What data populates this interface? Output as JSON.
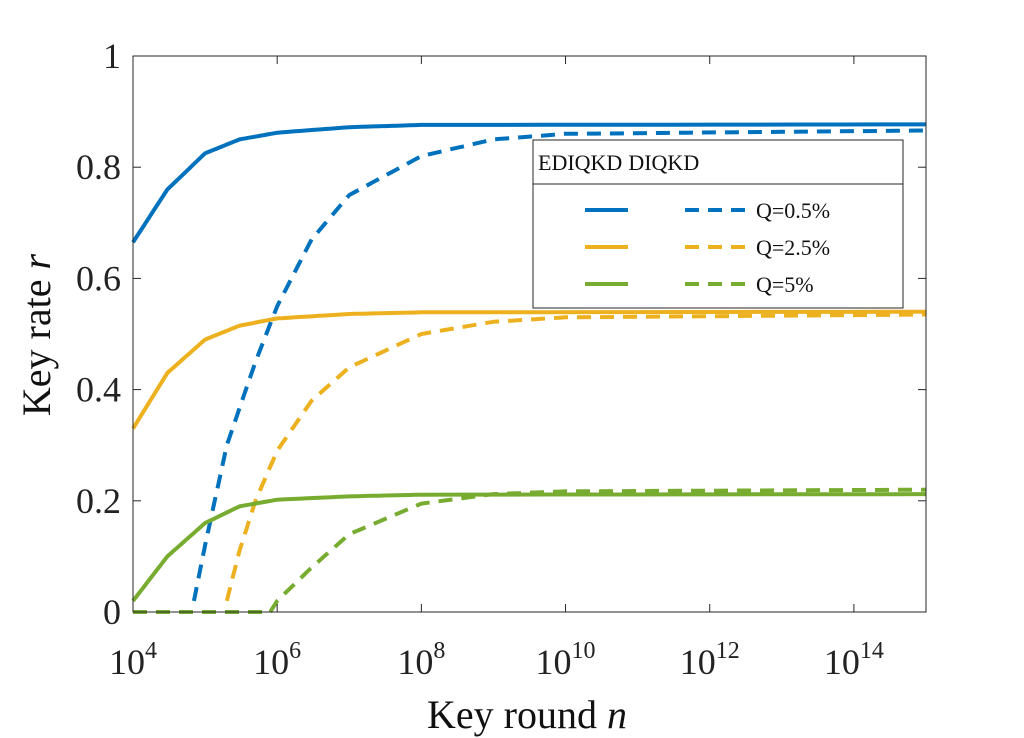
{
  "chart_data": {
    "type": "line",
    "xlabel": {
      "text": "Key round ",
      "var": "n"
    },
    "ylabel": {
      "text": "Key rate ",
      "var": "r"
    },
    "xscale": "log",
    "xlim": [
      10000,
      1000000000000000
    ],
    "ylim": [
      0,
      1
    ],
    "xticks": [
      {
        "base": "10",
        "exp": "4"
      },
      {
        "base": "10",
        "exp": "6"
      },
      {
        "base": "10",
        "exp": "8"
      },
      {
        "base": "10",
        "exp": "10"
      },
      {
        "base": "10",
        "exp": "12"
      },
      {
        "base": "10",
        "exp": "14"
      }
    ],
    "xtick_values": [
      10000,
      1000000,
      100000000,
      10000000000,
      1000000000000,
      100000000000000
    ],
    "yticks": [
      "0",
      "0.2",
      "0.4",
      "0.6",
      "0.8",
      "1"
    ],
    "ytick_values": [
      0,
      0.2,
      0.4,
      0.6,
      0.8,
      1
    ],
    "grid": false,
    "legend": {
      "placement": "top-right",
      "col1": "EDIQKD",
      "col2": "DIQKD",
      "entries": [
        "Q=0.5%",
        "Q=2.5%",
        "Q=5%"
      ]
    },
    "colors": {
      "blue": "#0072BD",
      "orange": "#EDB120",
      "green": "#77AC30"
    },
    "series": [
      {
        "legend_index": 0,
        "color": "blue",
        "style": "solid",
        "x": [
          10000,
          30000,
          100000,
          300000,
          1000000,
          10000000,
          100000000,
          1000000000000000
        ],
        "y": [
          0.665,
          0.76,
          0.825,
          0.85,
          0.862,
          0.872,
          0.876,
          0.877
        ]
      },
      {
        "legend_index": 0,
        "color": "blue",
        "style": "dashed",
        "x": [
          70000,
          100000,
          200000,
          500000,
          1000000,
          3000000,
          10000000,
          100000000,
          1000000000,
          10000000000,
          1000000000000000
        ],
        "y": [
          0.02,
          0.12,
          0.3,
          0.45,
          0.55,
          0.67,
          0.75,
          0.82,
          0.85,
          0.86,
          0.866
        ]
      },
      {
        "legend_index": 1,
        "color": "orange",
        "style": "solid",
        "x": [
          10000,
          30000,
          100000,
          300000,
          1000000,
          10000000,
          100000000,
          1000000000000000
        ],
        "y": [
          0.33,
          0.43,
          0.49,
          0.515,
          0.528,
          0.536,
          0.539,
          0.54
        ]
      },
      {
        "legend_index": 1,
        "color": "orange",
        "style": "dashed",
        "x": [
          200000,
          300000,
          500000,
          1000000,
          3000000,
          10000000,
          100000000,
          1000000000,
          10000000000,
          1000000000000000
        ],
        "y": [
          0.02,
          0.11,
          0.2,
          0.29,
          0.38,
          0.44,
          0.5,
          0.522,
          0.53,
          0.535
        ]
      },
      {
        "legend_index": 2,
        "color": "green",
        "style": "solid",
        "x": [
          10000,
          30000,
          100000,
          300000,
          1000000,
          10000000,
          100000000,
          1000000000000000
        ],
        "y": [
          0.02,
          0.1,
          0.16,
          0.19,
          0.202,
          0.208,
          0.211,
          0.212
        ]
      },
      {
        "legend_index": 2,
        "color": "green",
        "style": "dashed",
        "x": [
          800000,
          1000000,
          3000000,
          10000000,
          100000000,
          1000000000,
          10000000000,
          1000000000000000
        ],
        "y": [
          0.0,
          0.02,
          0.08,
          0.14,
          0.195,
          0.212,
          0.217,
          0.22
        ]
      },
      {
        "legend_index": -1,
        "color": "blue",
        "style": "dashed",
        "x": [
          10000,
          70000
        ],
        "y": [
          0.0,
          0.0
        ]
      },
      {
        "legend_index": -1,
        "color": "orange",
        "style": "dashed",
        "x": [
          10000,
          200000
        ],
        "y": [
          0.0,
          0.0
        ]
      },
      {
        "legend_index": -1,
        "color": "green",
        "style": "dashed",
        "x": [
          10000,
          800000
        ],
        "y": [
          0.0,
          0.0
        ]
      }
    ]
  }
}
